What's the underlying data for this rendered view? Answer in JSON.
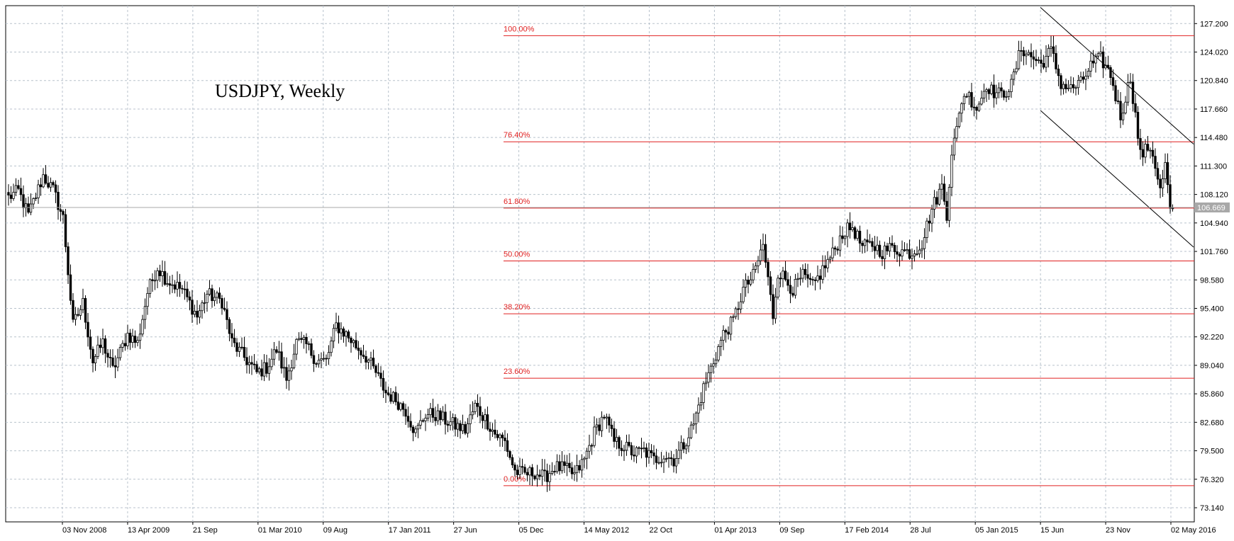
{
  "chart_data": {
    "type": "candlestick",
    "title": "USDJPY, Weekly",
    "symbol": "USDJPY",
    "timeframe": "Weekly",
    "current_price_label": "106.669",
    "current_price": 106.669,
    "ylim": [
      71.56,
      129.2
    ],
    "y_ticks": [
      "127.200",
      "124.020",
      "120.840",
      "117.660",
      "114.480",
      "111.300",
      "108.120",
      "104.940",
      "101.760",
      "98.580",
      "95.400",
      "92.220",
      "89.040",
      "85.860",
      "82.680",
      "79.500",
      "76.320",
      "73.140"
    ],
    "x_tick_labels": [
      "03 Nov 2008",
      "13 Apr 2009",
      "21 Sep",
      "01 Mar 2010",
      "09 Aug",
      "17 Jan 2011",
      "27 Jun",
      "05 Dec",
      "14 May 2012",
      "22 Oct",
      "01 Apr 2013",
      "09 Sep",
      "17 Feb 2014",
      "28 Jul",
      "05 Jan 2015",
      "15 Jun",
      "23 Nov",
      "02 May 2016"
    ],
    "grid": true,
    "fibonacci": {
      "low": 75.6,
      "high": 125.85,
      "levels": [
        {
          "label": "100.00%",
          "price": 125.85
        },
        {
          "label": "76.40%",
          "price": 114.0
        },
        {
          "label": "61.80%",
          "price": 106.6
        },
        {
          "label": "50.00%",
          "price": 100.7
        },
        {
          "label": "38.20%",
          "price": 94.8
        },
        {
          "label": "23.60%",
          "price": 87.6
        },
        {
          "label": "0.00%",
          "price": 75.6
        }
      ]
    },
    "trend_channel": {
      "upper": {
        "start_date": "15 Jun 2015",
        "start_price": 129.0,
        "end_date": "02 May 2016",
        "end_price": 116.0
      },
      "lower": {
        "start_date": "15 Jun 2015",
        "start_price": 117.5,
        "end_date": "02 May 2016",
        "end_price": 104.5
      }
    },
    "price_path": [
      [
        0,
        107.8
      ],
      [
        4,
        108.5
      ],
      [
        8,
        105.8
      ],
      [
        14,
        110.2
      ],
      [
        18,
        108.6
      ],
      [
        22,
        105.5
      ],
      [
        26,
        93.5
      ],
      [
        30,
        96.0
      ],
      [
        34,
        89.5
      ],
      [
        38,
        91.6
      ],
      [
        42,
        88.5
      ],
      [
        48,
        92.5
      ],
      [
        52,
        91.5
      ],
      [
        56,
        97.2
      ],
      [
        60,
        100.0
      ],
      [
        64,
        98.5
      ],
      [
        70,
        97.5
      ],
      [
        76,
        94.5
      ],
      [
        80,
        97.0
      ],
      [
        86,
        96.2
      ],
      [
        90,
        91.6
      ],
      [
        96,
        89.6
      ],
      [
        100,
        88.2
      ],
      [
        104,
        88.8
      ],
      [
        108,
        90.8
      ],
      [
        112,
        87.5
      ],
      [
        116,
        91.6
      ],
      [
        120,
        91.3
      ],
      [
        124,
        89.6
      ],
      [
        128,
        89.5
      ],
      [
        132,
        93.5
      ],
      [
        136,
        92.5
      ],
      [
        140,
        91.2
      ],
      [
        144,
        90.0
      ],
      [
        148,
        88.2
      ],
      [
        152,
        86.0
      ],
      [
        156,
        85.2
      ],
      [
        160,
        84.0
      ],
      [
        164,
        81.5
      ],
      [
        168,
        83.6
      ],
      [
        172,
        83.5
      ],
      [
        176,
        82.9
      ],
      [
        180,
        82.3
      ],
      [
        184,
        81.8
      ],
      [
        188,
        84.5
      ],
      [
        192,
        83.1
      ],
      [
        196,
        81.4
      ],
      [
        200,
        80.5
      ],
      [
        204,
        77.2
      ],
      [
        208,
        76.9
      ],
      [
        212,
        77.1
      ],
      [
        216,
        76.5
      ],
      [
        220,
        77.7
      ],
      [
        224,
        77.5
      ],
      [
        228,
        76.8
      ],
      [
        232,
        78.5
      ],
      [
        236,
        81.5
      ],
      [
        240,
        83.5
      ],
      [
        244,
        80.5
      ],
      [
        248,
        80.0
      ],
      [
        252,
        79.2
      ],
      [
        256,
        79.5
      ],
      [
        260,
        78.5
      ],
      [
        264,
        79.0
      ],
      [
        268,
        78.5
      ],
      [
        272,
        80.2
      ],
      [
        276,
        82.5
      ],
      [
        280,
        86.5
      ],
      [
        284,
        89.5
      ],
      [
        288,
        92.5
      ],
      [
        292,
        94.0
      ],
      [
        296,
        97.5
      ],
      [
        300,
        99.0
      ],
      [
        304,
        102.5
      ],
      [
        306,
        98.6
      ],
      [
        308,
        94.6
      ],
      [
        310,
        99.5
      ],
      [
        312,
        99.0
      ],
      [
        316,
        97.5
      ],
      [
        320,
        99.0
      ],
      [
        324,
        97.8
      ],
      [
        328,
        99.7
      ],
      [
        332,
        101.5
      ],
      [
        336,
        103.8
      ],
      [
        340,
        104.5
      ],
      [
        344,
        102.2
      ],
      [
        348,
        102.5
      ],
      [
        352,
        101.7
      ],
      [
        356,
        102.2
      ],
      [
        360,
        101.8
      ],
      [
        364,
        101.6
      ],
      [
        368,
        102.7
      ],
      [
        372,
        106.5
      ],
      [
        376,
        109.0
      ],
      [
        378,
        106.0
      ],
      [
        380,
        113.0
      ],
      [
        382,
        115.2
      ],
      [
        384,
        118.7
      ],
      [
        386,
        119.5
      ],
      [
        390,
        117.8
      ],
      [
        392,
        119.0
      ],
      [
        394,
        120.5
      ],
      [
        396,
        119.7
      ],
      [
        400,
        119.2
      ],
      [
        404,
        120.3
      ],
      [
        408,
        124.5
      ],
      [
        412,
        123.5
      ],
      [
        416,
        122.7
      ],
      [
        420,
        124.2
      ],
      [
        424,
        120.5
      ],
      [
        428,
        119.9
      ],
      [
        432,
        120.5
      ],
      [
        436,
        122.5
      ],
      [
        440,
        123.3
      ],
      [
        444,
        121.5
      ],
      [
        448,
        116.8
      ],
      [
        452,
        121.2
      ],
      [
        454,
        116.9
      ],
      [
        456,
        112.5
      ],
      [
        460,
        113.5
      ],
      [
        462,
        111.5
      ],
      [
        464,
        108.5
      ],
      [
        466,
        111.3
      ],
      [
        468,
        106.6
      ]
    ]
  }
}
